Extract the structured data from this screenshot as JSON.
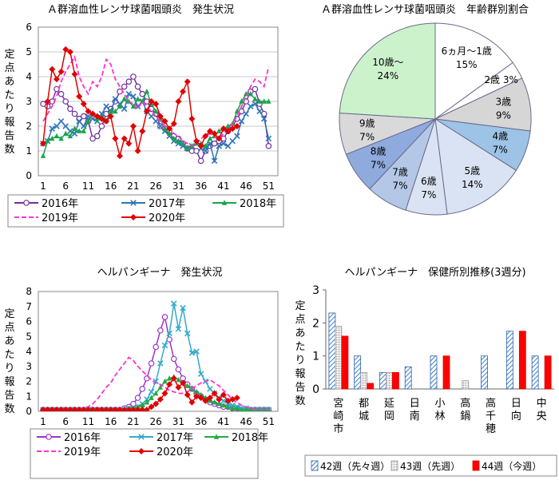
{
  "chart_data": [
    {
      "type": "line",
      "title": "Ａ群溶血性レンサ球菌咽頭炎　発生状況",
      "ylabel": "定点あたり報告数",
      "xticks": [
        1,
        6,
        11,
        16,
        21,
        26,
        31,
        36,
        41,
        46,
        51
      ],
      "ylim": [
        0,
        6
      ],
      "yticks": [
        0,
        1,
        2,
        3,
        4,
        5,
        6
      ],
      "grid": true,
      "legend": "bottom",
      "series": [
        {
          "name": "2016年",
          "color": "#7030a0",
          "dash": "",
          "marker": "circle",
          "values": [
            2.9,
            2.8,
            3.0,
            3.5,
            3.3,
            3.0,
            2.7,
            2.5,
            2.3,
            2.4,
            2.2,
            1.5,
            1.6,
            2.0,
            2.5,
            2.7,
            3.0,
            3.4,
            3.6,
            3.8,
            4.0,
            3.6,
            3.3,
            3.0,
            2.7,
            2.5,
            2.0,
            1.9,
            1.8,
            1.6,
            1.5,
            1.3,
            1.1,
            1.0,
            1.0,
            0.6,
            1.0,
            1.2,
            1.3,
            1.4,
            1.5,
            1.8,
            2.0,
            2.3,
            2.6,
            3.0,
            3.4,
            3.5,
            2.9,
            2.5,
            1.2
          ]
        },
        {
          "name": "2017年",
          "color": "#2e75b6",
          "dash": "",
          "marker": "x",
          "values": [
            1.3,
            1.4,
            1.9,
            2.0,
            2.2,
            2.0,
            1.8,
            1.7,
            2.2,
            2.0,
            2.4,
            2.3,
            2.2,
            2.5,
            2.8,
            2.6,
            3.1,
            2.9,
            2.7,
            3.3,
            3.2,
            2.8,
            3.0,
            2.6,
            2.4,
            2.2,
            2.0,
            1.8,
            1.6,
            1.4,
            1.3,
            1.2,
            1.1,
            1.2,
            1.3,
            1.1,
            1.0,
            1.3,
            0.6,
            1.2,
            1.3,
            1.2,
            1.4,
            1.6,
            2.2,
            2.5,
            2.8,
            2.9,
            2.6,
            2.3,
            1.5
          ]
        },
        {
          "name": "2018年",
          "color": "#1aa34a",
          "dash": "",
          "marker": "triangle",
          "values": [
            0.8,
            1.4,
            1.5,
            1.6,
            1.5,
            1.7,
            1.6,
            1.9,
            1.8,
            1.8,
            2.2,
            2.5,
            2.3,
            2.4,
            2.2,
            2.6,
            2.6,
            2.8,
            3.1,
            3.0,
            2.8,
            3.1,
            3.0,
            3.4,
            2.9,
            2.6,
            2.3,
            1.9,
            1.7,
            1.5,
            1.4,
            1.3,
            1.1,
            1.2,
            1.3,
            1.3,
            1.2,
            1.5,
            1.6,
            1.8,
            1.9,
            2.0,
            2.1,
            2.6,
            3.0,
            3.3,
            3.3,
            3.1,
            3.0,
            3.0,
            3.0
          ]
        },
        {
          "name": "2019年",
          "color": "#ff33cc",
          "dash": "6,3",
          "marker": "",
          "values": [
            2.2,
            2.5,
            2.8,
            3.2,
            3.8,
            4.2,
            4.5,
            4.8,
            4.0,
            3.6,
            3.3,
            3.8,
            3.6,
            4.0,
            4.7,
            4.5,
            3.9,
            3.6,
            3.3,
            3.0,
            2.9,
            2.7,
            3.0,
            2.8,
            2.6,
            2.4,
            2.2,
            2.0,
            1.9,
            1.7,
            1.6,
            1.4,
            1.3,
            1.2,
            1.3,
            1.5,
            1.6,
            1.7,
            1.6,
            1.5,
            1.7,
            1.9,
            2.1,
            2.4,
            2.8,
            3.2,
            3.6,
            3.9,
            3.8,
            3.6,
            4.4
          ]
        },
        {
          "name": "2020年",
          "color": "#e00000",
          "dash": "",
          "marker": "diamond",
          "values": [
            1.3,
            3.0,
            4.3,
            3.9,
            4.2,
            5.1,
            5.0,
            4.1,
            3.2,
            2.9,
            2.6,
            2.5,
            2.4,
            2.3,
            2.2,
            2.4,
            1.5,
            0.8,
            1.5,
            1.3,
            2.0,
            1.0,
            1.8,
            2.6,
            3.0,
            2.9,
            2.4,
            2.2,
            1.9,
            2.1,
            3.0,
            3.4,
            3.8,
            2.3,
            1.4,
            1.2,
            1.6,
            1.8,
            1.7,
            1.5,
            1.9,
            1.8,
            1.9,
            2.0
          ]
        }
      ]
    },
    {
      "type": "pie",
      "title": "Ａ群溶血性レンサ球菌咽頭炎　年齢群別割合",
      "slices": [
        {
          "label": "6ヵ月～1歳",
          "pct": 15,
          "value": 15,
          "color": "#ffffff"
        },
        {
          "label": "2歳",
          "pct": 3,
          "value": 3,
          "color": "#ffffff"
        },
        {
          "label": "3歳",
          "pct": 9,
          "value": 9,
          "color": "#d6d6d6"
        },
        {
          "label": "4歳",
          "pct": 7,
          "value": 7,
          "color": "#9dc3e6"
        },
        {
          "label": "5歳",
          "pct": 14,
          "value": 14,
          "color": "#dae3f3"
        },
        {
          "label": "6歳",
          "pct": 7,
          "value": 7,
          "color": "#dae3f3"
        },
        {
          "label": "7歳",
          "pct": 7,
          "value": 7,
          "color": "#b4c7e7"
        },
        {
          "label": "8歳",
          "pct": 7,
          "value": 7,
          "color": "#8faadc"
        },
        {
          "label": "9歳",
          "pct": 7,
          "value": 7,
          "color": "#d9d9d9"
        },
        {
          "label": "10歳～",
          "pct": 24,
          "value": 24,
          "color": "#ccf2cc"
        }
      ]
    },
    {
      "type": "line",
      "title": "ヘルパンギーナ　発生状況",
      "ylabel": "定点あたり報告数",
      "xticks": [
        1,
        6,
        11,
        16,
        21,
        26,
        31,
        36,
        41,
        46,
        51
      ],
      "ylim": [
        0,
        8
      ],
      "yticks": [
        0,
        1,
        2,
        3,
        4,
        5,
        6,
        7,
        8
      ],
      "grid": false,
      "legend": "bottom",
      "series": [
        {
          "name": "2016年",
          "color": "#9933cc",
          "dash": "",
          "marker": "circle",
          "values": [
            0.1,
            0.1,
            0.1,
            0.1,
            0.1,
            0.1,
            0.1,
            0.1,
            0.1,
            0.1,
            0.1,
            0.1,
            0.1,
            0.1,
            0.1,
            0.1,
            0.1,
            0.1,
            0.2,
            0.3,
            0.5,
            0.9,
            1.5,
            2.2,
            3.2,
            4.3,
            5.4,
            6.3,
            4.8,
            3.5,
            2.8,
            2.2,
            1.8,
            1.5,
            1.2,
            1.0,
            0.8,
            0.6,
            0.5,
            0.4,
            0.3,
            0.3,
            0.2,
            0.2,
            0.1,
            0.1,
            0.1,
            0.1,
            0.1,
            0.1,
            0.1
          ]
        },
        {
          "name": "2017年",
          "color": "#33aacc",
          "dash": "",
          "marker": "x",
          "values": [
            0.1,
            0.1,
            0.1,
            0.1,
            0.1,
            0.1,
            0.1,
            0.1,
            0.1,
            0.1,
            0.1,
            0.1,
            0.1,
            0.1,
            0.1,
            0.1,
            0.1,
            0.1,
            0.1,
            0.2,
            0.2,
            0.3,
            0.5,
            0.8,
            1.3,
            2.0,
            3.2,
            4.4,
            5.2,
            7.2,
            5.5,
            6.9,
            5.2,
            3.9,
            4.0,
            2.5,
            2.0,
            1.5,
            1.2,
            0.9,
            0.7,
            0.5,
            0.4,
            0.3,
            0.2,
            0.2,
            0.1,
            0.1,
            0.1,
            0.1,
            0.1
          ]
        },
        {
          "name": "2018年",
          "color": "#22aa44",
          "dash": "",
          "marker": "triangle",
          "values": [
            0.1,
            0.1,
            0.1,
            0.1,
            0.1,
            0.1,
            0.1,
            0.1,
            0.1,
            0.1,
            0.1,
            0.1,
            0.1,
            0.1,
            0.1,
            0.1,
            0.1,
            0.1,
            0.1,
            0.2,
            0.2,
            0.3,
            0.4,
            0.6,
            0.9,
            1.2,
            1.6,
            2.0,
            2.2,
            2.3,
            2.1,
            1.9,
            1.7,
            1.5,
            1.3,
            1.1,
            0.9,
            0.7,
            0.6,
            0.5,
            0.4,
            0.3,
            0.2,
            0.2,
            0.1,
            0.1,
            0.1,
            0.1,
            0.1,
            0.1,
            0.1
          ]
        },
        {
          "name": "2019年",
          "color": "#ff33cc",
          "dash": "6,3",
          "marker": "",
          "values": [
            0.1,
            0.1,
            0.1,
            0.1,
            0.1,
            0.1,
            0.1,
            0.1,
            0.1,
            0.2,
            0.3,
            0.5,
            0.8,
            1.2,
            1.6,
            1.9,
            2.4,
            2.8,
            3.2,
            3.6,
            3.4,
            3.0,
            2.7,
            2.4,
            2.1,
            1.9,
            1.8,
            1.6,
            1.4,
            1.3,
            1.2,
            1.2,
            1.3,
            1.5,
            1.7,
            1.9,
            2.0,
            2.1,
            1.9,
            1.7,
            1.4,
            1.1,
            0.8,
            0.6,
            0.4,
            0.3,
            0.2,
            0.1,
            0.1,
            0.1,
            0.1
          ]
        },
        {
          "name": "2020年",
          "color": "#e00000",
          "dash": "",
          "marker": "diamond",
          "values": [
            0.1,
            0.1,
            0.1,
            0.1,
            0.1,
            0.1,
            0.1,
            0.1,
            0.1,
            0.1,
            0.1,
            0.1,
            0.1,
            0.1,
            0.1,
            0.1,
            0.1,
            0.1,
            0.1,
            0.1,
            0.1,
            0.1,
            0.1,
            0.1,
            0.3,
            0.5,
            0.8,
            1.2,
            1.8,
            2.2,
            1.6,
            1.9,
            1.1,
            0.6,
            1.0,
            0.9,
            0.7,
            0.9,
            1.2,
            0.8,
            1.1,
            0.7,
            0.8,
            0.9
          ]
        }
      ]
    },
    {
      "type": "bar",
      "title": "ヘルパンギーナ　保健所別推移(3週分)",
      "ylabel": "定点あたり報告数",
      "categories": [
        "宮崎市",
        "都城",
        "延岡",
        "日南",
        "小林",
        "高鍋",
        "高千穂",
        "日向",
        "中央"
      ],
      "ylim": [
        0,
        3
      ],
      "yticks": [
        0,
        1,
        2,
        3
      ],
      "grid": false,
      "legend": "bottom",
      "series": [
        {
          "name": "42週（先々週）",
          "color": "#3a7fd0",
          "pattern": "hatch",
          "values": [
            2.3,
            1.0,
            0.5,
            0.67,
            1.0,
            0.0,
            1.0,
            1.75,
            1.0
          ]
        },
        {
          "name": "43週（先週）",
          "color": "#bfbfbf",
          "pattern": "dots",
          "values": [
            1.9,
            0.5,
            0.5,
            0.0,
            0.0,
            0.25,
            0.0,
            0.0,
            0.0
          ]
        },
        {
          "name": "44週（今週）",
          "color": "#ff0000",
          "pattern": "solid",
          "values": [
            1.6,
            0.17,
            0.5,
            0.0,
            1.0,
            0.0,
            0.0,
            1.75,
            1.0
          ]
        }
      ]
    }
  ]
}
